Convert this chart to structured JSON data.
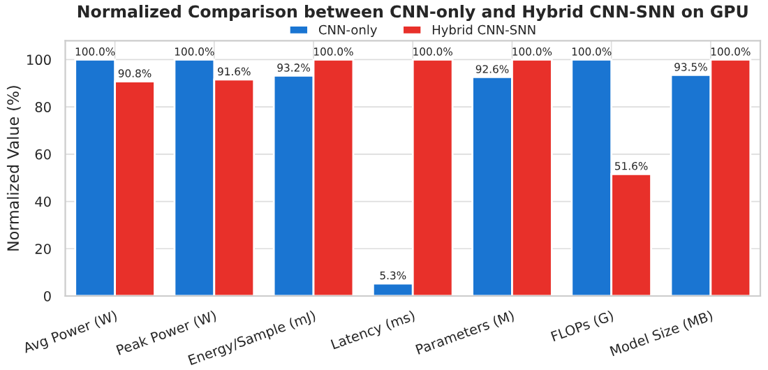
{
  "chart_data": {
    "type": "bar",
    "title": "Normalized Comparison between CNN-only and Hybrid CNN-SNN on GPU",
    "ylabel": "Normalized Value (%)",
    "categories": [
      "Avg Power (W)",
      "Peak Power (W)",
      "Energy/Sample (mJ)",
      "Latency (ms)",
      "Parameters (M)",
      "FLOPs (G)",
      "Model Size (MB)"
    ],
    "series": [
      {
        "name": "CNN-only",
        "color": "#1a75d2",
        "values": [
          100.0,
          100.0,
          93.2,
          5.3,
          92.6,
          100.0,
          93.5
        ],
        "value_labels": [
          "100.0%",
          "100.0%",
          "93.2%",
          "5.3%",
          "92.6%",
          "100.0%",
          "93.5%"
        ]
      },
      {
        "name": "Hybrid CNN-SNN",
        "color": "#e8302a",
        "values": [
          90.8,
          91.6,
          100.0,
          100.0,
          100.0,
          51.6,
          100.0
        ],
        "value_labels": [
          "90.8%",
          "91.6%",
          "100.0%",
          "100.0%",
          "100.0%",
          "51.6%",
          "100.0%"
        ]
      }
    ],
    "ylim": [
      0,
      108
    ],
    "yticks": [
      0,
      20,
      40,
      60,
      80,
      100
    ],
    "grid": true,
    "legend": "top"
  }
}
